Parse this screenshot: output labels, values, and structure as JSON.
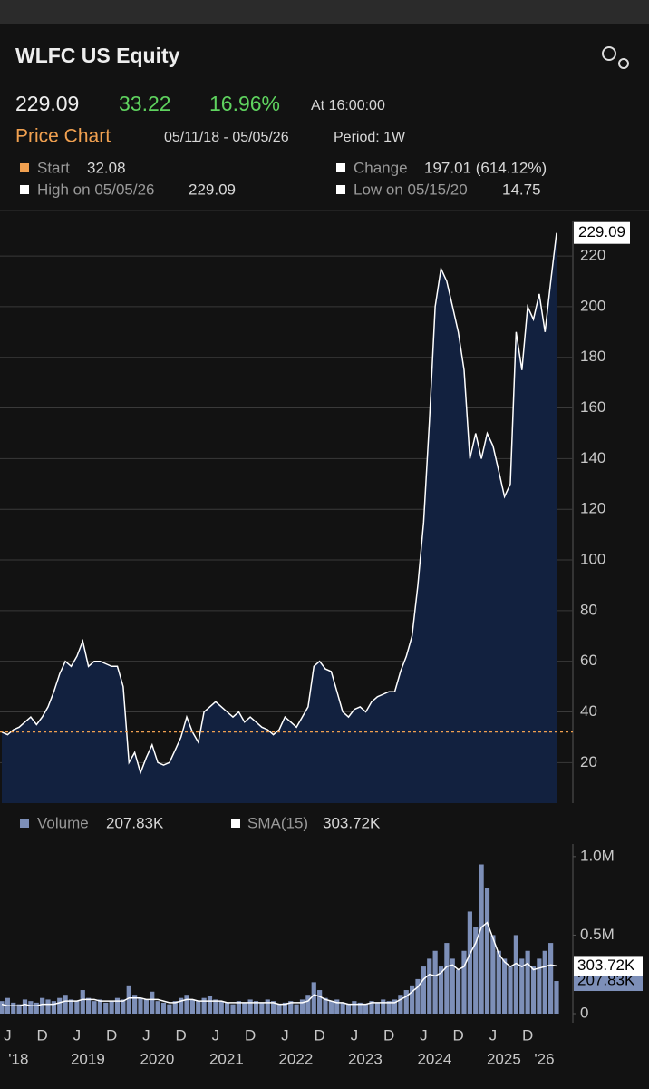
{
  "header": {
    "title": "WLFC US Equity",
    "price": "229.09",
    "change": "33.22",
    "change_pct": "16.96%",
    "time": "At 16:00:00",
    "section": "Price Chart",
    "range": "05/11/18 - 05/05/26",
    "period": "Period: 1W"
  },
  "legend": {
    "start_label": "Start",
    "change_label": "Change",
    "change_value": "197.01 (614.12%)",
    "high_label": "High on 05/05/26",
    "high_value": "229.09",
    "low_label": "Low on 05/15/20",
    "low_value": "14.75"
  },
  "chart_data": [
    {
      "type": "area",
      "color": "#ffffff",
      "fill": "#12213f",
      "reference_line": 32.08,
      "reference_color": "#f0a050",
      "categories": [
        "2018-05",
        "2018-06",
        "2018-07",
        "2018-08",
        "2018-09",
        "2018-10",
        "2018-11",
        "2018-12",
        "2019-01",
        "2019-02",
        "2019-03",
        "2019-04",
        "2019-05",
        "2019-06",
        "2019-07",
        "2019-08",
        "2019-09",
        "2019-10",
        "2019-11",
        "2019-12",
        "2020-01",
        "2020-02",
        "2020-03",
        "2020-04",
        "2020-05",
        "2020-06",
        "2020-07",
        "2020-08",
        "2020-09",
        "2020-10",
        "2020-11",
        "2020-12",
        "2021-01",
        "2021-02",
        "2021-03",
        "2021-04",
        "2021-05",
        "2021-06",
        "2021-07",
        "2021-08",
        "2021-09",
        "2021-10",
        "2021-11",
        "2021-12",
        "2022-01",
        "2022-02",
        "2022-03",
        "2022-04",
        "2022-05",
        "2022-06",
        "2022-07",
        "2022-08",
        "2022-09",
        "2022-10",
        "2022-11",
        "2022-12",
        "2023-01",
        "2023-02",
        "2023-03",
        "2023-04",
        "2023-05",
        "2023-06",
        "2023-07",
        "2023-08",
        "2023-09",
        "2023-10",
        "2023-11",
        "2023-12",
        "2024-01",
        "2024-02",
        "2024-03",
        "2024-04",
        "2024-05",
        "2024-06",
        "2024-07",
        "2024-08",
        "2024-09",
        "2024-10",
        "2024-11",
        "2024-12",
        "2025-01",
        "2025-02",
        "2025-03",
        "2025-04",
        "2025-05",
        "2025-06",
        "2025-07",
        "2025-08",
        "2025-09",
        "2025-10",
        "2025-11",
        "2025-12",
        "2026-01",
        "2026-02",
        "2026-03",
        "2026-04",
        "2026-05"
      ],
      "values": [
        32,
        31,
        33,
        34,
        36,
        38,
        35,
        38,
        42,
        48,
        55,
        60,
        58,
        62,
        68,
        58,
        60,
        60,
        59,
        58,
        58,
        50,
        20,
        24,
        16,
        22,
        27,
        20,
        19,
        20,
        25,
        30,
        38,
        32,
        28,
        40,
        42,
        44,
        42,
        40,
        38,
        40,
        36,
        38,
        36,
        34,
        33,
        31,
        33,
        38,
        36,
        34,
        38,
        42,
        58,
        60,
        57,
        56,
        48,
        40,
        38,
        41,
        42,
        40,
        44,
        46,
        47,
        48,
        48,
        56,
        62,
        70,
        90,
        115,
        155,
        200,
        215,
        210,
        200,
        190,
        175,
        140,
        150,
        140,
        150,
        145,
        135,
        125,
        130,
        190,
        175,
        200,
        195,
        205,
        190,
        210,
        229.09
      ],
      "ylim": [
        4,
        234
      ],
      "yticks": [
        20,
        40,
        60,
        80,
        100,
        120,
        140,
        160,
        180,
        200,
        220
      ],
      "grid": true
    },
    {
      "type": "bar",
      "ylim": [
        0,
        1.08
      ],
      "yticks": [
        {
          "value": 1.0,
          "label": "1.0M"
        },
        {
          "value": 0.5,
          "label": "0.5M"
        },
        0
      ],
      "series": [
        {
          "name": "Volume",
          "color": "#7d8fb8",
          "last_value_label": "207.83K",
          "values": [
            0.08,
            0.1,
            0.07,
            0.06,
            0.09,
            0.08,
            0.07,
            0.1,
            0.09,
            0.08,
            0.1,
            0.12,
            0.09,
            0.08,
            0.15,
            0.1,
            0.08,
            0.09,
            0.07,
            0.08,
            0.1,
            0.09,
            0.18,
            0.12,
            0.1,
            0.09,
            0.14,
            0.08,
            0.07,
            0.06,
            0.08,
            0.1,
            0.12,
            0.09,
            0.08,
            0.1,
            0.11,
            0.09,
            0.08,
            0.07,
            0.06,
            0.08,
            0.07,
            0.09,
            0.08,
            0.07,
            0.09,
            0.08,
            0.06,
            0.07,
            0.08,
            0.06,
            0.09,
            0.12,
            0.2,
            0.15,
            0.1,
            0.08,
            0.09,
            0.07,
            0.06,
            0.08,
            0.07,
            0.06,
            0.08,
            0.07,
            0.09,
            0.08,
            0.09,
            0.12,
            0.15,
            0.18,
            0.22,
            0.3,
            0.35,
            0.4,
            0.3,
            0.45,
            0.35,
            0.28,
            0.4,
            0.65,
            0.55,
            0.95,
            0.8,
            0.5,
            0.4,
            0.35,
            0.3,
            0.5,
            0.35,
            0.4,
            0.3,
            0.35,
            0.4,
            0.45,
            0.20783
          ]
        },
        {
          "name": "SMA(15)",
          "color": "#ffffff",
          "type": "line",
          "last_value_label": "303.72K",
          "values": [
            0.06,
            0.05,
            0.05,
            0.05,
            0.06,
            0.05,
            0.05,
            0.06,
            0.06,
            0.06,
            0.07,
            0.08,
            0.08,
            0.08,
            0.09,
            0.09,
            0.09,
            0.08,
            0.08,
            0.08,
            0.08,
            0.08,
            0.1,
            0.1,
            0.1,
            0.09,
            0.09,
            0.09,
            0.08,
            0.07,
            0.07,
            0.08,
            0.09,
            0.09,
            0.08,
            0.08,
            0.08,
            0.08,
            0.08,
            0.07,
            0.07,
            0.07,
            0.07,
            0.07,
            0.07,
            0.07,
            0.07,
            0.07,
            0.06,
            0.06,
            0.07,
            0.07,
            0.07,
            0.08,
            0.12,
            0.11,
            0.09,
            0.08,
            0.07,
            0.07,
            0.06,
            0.06,
            0.06,
            0.06,
            0.07,
            0.07,
            0.07,
            0.07,
            0.07,
            0.09,
            0.11,
            0.14,
            0.17,
            0.22,
            0.25,
            0.24,
            0.26,
            0.3,
            0.31,
            0.28,
            0.3,
            0.38,
            0.45,
            0.55,
            0.58,
            0.48,
            0.38,
            0.33,
            0.3,
            0.32,
            0.3,
            0.32,
            0.28,
            0.29,
            0.3,
            0.31,
            0.30372
          ]
        }
      ],
      "xticks": [
        {
          "value": "2018-06",
          "label": "J"
        },
        {
          "value": "2018-12",
          "label": "D"
        },
        {
          "value": "2019-06",
          "label": "J"
        },
        {
          "value": "2019-12",
          "label": "D"
        },
        {
          "value": "2020-06",
          "label": "J"
        },
        {
          "value": "2020-12",
          "label": "D"
        },
        {
          "value": "2021-06",
          "label": "J"
        },
        {
          "value": "2021-12",
          "label": "D"
        },
        {
          "value": "2022-06",
          "label": "J"
        },
        {
          "value": "2022-12",
          "label": "D"
        },
        {
          "value": "2023-06",
          "label": "J"
        },
        {
          "value": "2023-12",
          "label": "D"
        },
        {
          "value": "2024-06",
          "label": "J"
        },
        {
          "value": "2024-12",
          "label": "D"
        },
        {
          "value": "2025-06",
          "label": "J"
        },
        {
          "value": "2025-12",
          "label": "D"
        }
      ],
      "xtick_years": [
        {
          "value": "2018-06",
          "label": "'18"
        },
        {
          "value": "2019-06",
          "label": "2019"
        },
        {
          "value": "2020-06",
          "label": "2020"
        },
        {
          "value": "2021-06",
          "label": "2021"
        },
        {
          "value": "2022-06",
          "label": "2022"
        },
        {
          "value": "2023-06",
          "label": "2023"
        },
        {
          "value": "2024-06",
          "label": "2024"
        },
        {
          "value": "2025-06",
          "label": "2025"
        },
        {
          "value": "2026-01",
          "label": "'26"
        }
      ]
    }
  ]
}
